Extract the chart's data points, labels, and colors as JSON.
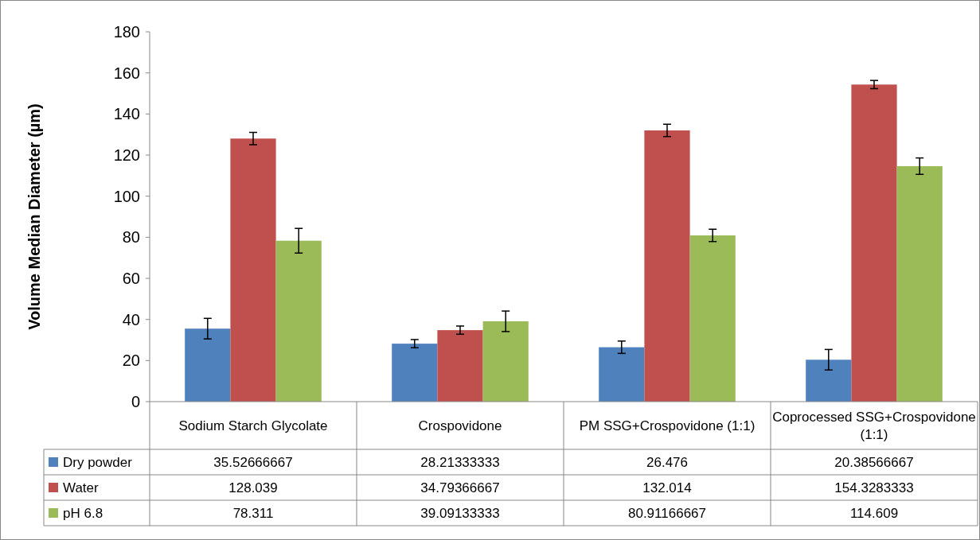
{
  "chart_data": {
    "type": "bar",
    "ylabel": "Volume Median Diameter (µm)",
    "categories": [
      "Sodium Starch Glycolate",
      "Crospovidone",
      "PM SSG+Crospovidone (1:1)",
      "Coprocessed SSG+Crospovidone (1:1)"
    ],
    "series": [
      {
        "name": "Dry powder",
        "color": "#4f81bd",
        "values": [
          35.52666667,
          28.21333333,
          26.476,
          20.38566667
        ],
        "errors": [
          5,
          2,
          3,
          5
        ]
      },
      {
        "name": "Water",
        "color": "#c0504d",
        "values": [
          128.039,
          34.79366667,
          132.014,
          154.3283333
        ],
        "errors": [
          3,
          2,
          3,
          2
        ]
      },
      {
        "name": "pH 6.8",
        "color": "#9bbb59",
        "values": [
          78.311,
          39.09133333,
          80.91166667,
          114.609
        ],
        "errors": [
          6,
          5,
          3,
          4
        ]
      }
    ],
    "ylim": [
      0,
      180
    ],
    "yticks": [
      0,
      20,
      40,
      60,
      80,
      100,
      120,
      140,
      160,
      180
    ],
    "grid": false,
    "legend": "bottom",
    "data_labels": true
  }
}
